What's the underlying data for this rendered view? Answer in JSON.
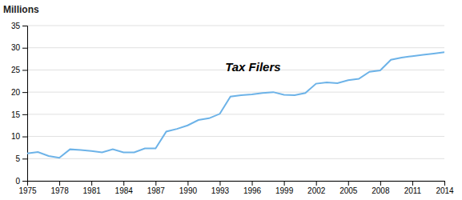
{
  "chart_data": {
    "type": "line",
    "y_label": "Millions",
    "annotations": [
      {
        "text": "Tax Filers",
        "x": 1993.5,
        "y": 25.5
      }
    ],
    "color": "#6db3e8",
    "grid": true,
    "x": [
      1975,
      1976,
      1977,
      1978,
      1979,
      1980,
      1981,
      1982,
      1983,
      1984,
      1985,
      1986,
      1987,
      1988,
      1989,
      1990,
      1991,
      1992,
      1993,
      1994,
      1995,
      1996,
      1997,
      1998,
      1999,
      2000,
      2001,
      2002,
      2003,
      2004,
      2005,
      2006,
      2007,
      2008,
      2009,
      2010,
      2011,
      2012,
      2013,
      2014
    ],
    "values": [
      6.2,
      6.5,
      5.6,
      5.2,
      7.1,
      6.95,
      6.7,
      6.4,
      7.1,
      6.4,
      6.4,
      7.3,
      7.3,
      11.1,
      11.7,
      12.5,
      13.7,
      14.1,
      15.1,
      19.0,
      19.3,
      19.5,
      19.8,
      20.0,
      19.4,
      19.3,
      19.8,
      21.9,
      22.2,
      22.0,
      22.7,
      23.0,
      24.6,
      24.9,
      27.3,
      27.8,
      28.1,
      28.4,
      28.7,
      29.0
    ],
    "xlim": [
      1975,
      2014
    ],
    "xticks": [
      1975,
      1978,
      1981,
      1984,
      1987,
      1990,
      1993,
      1996,
      1999,
      2002,
      2005,
      2008,
      2011,
      2014
    ],
    "ylim": [
      0,
      35
    ],
    "yticks": [
      0,
      5,
      10,
      15,
      20,
      25,
      30,
      35
    ]
  }
}
